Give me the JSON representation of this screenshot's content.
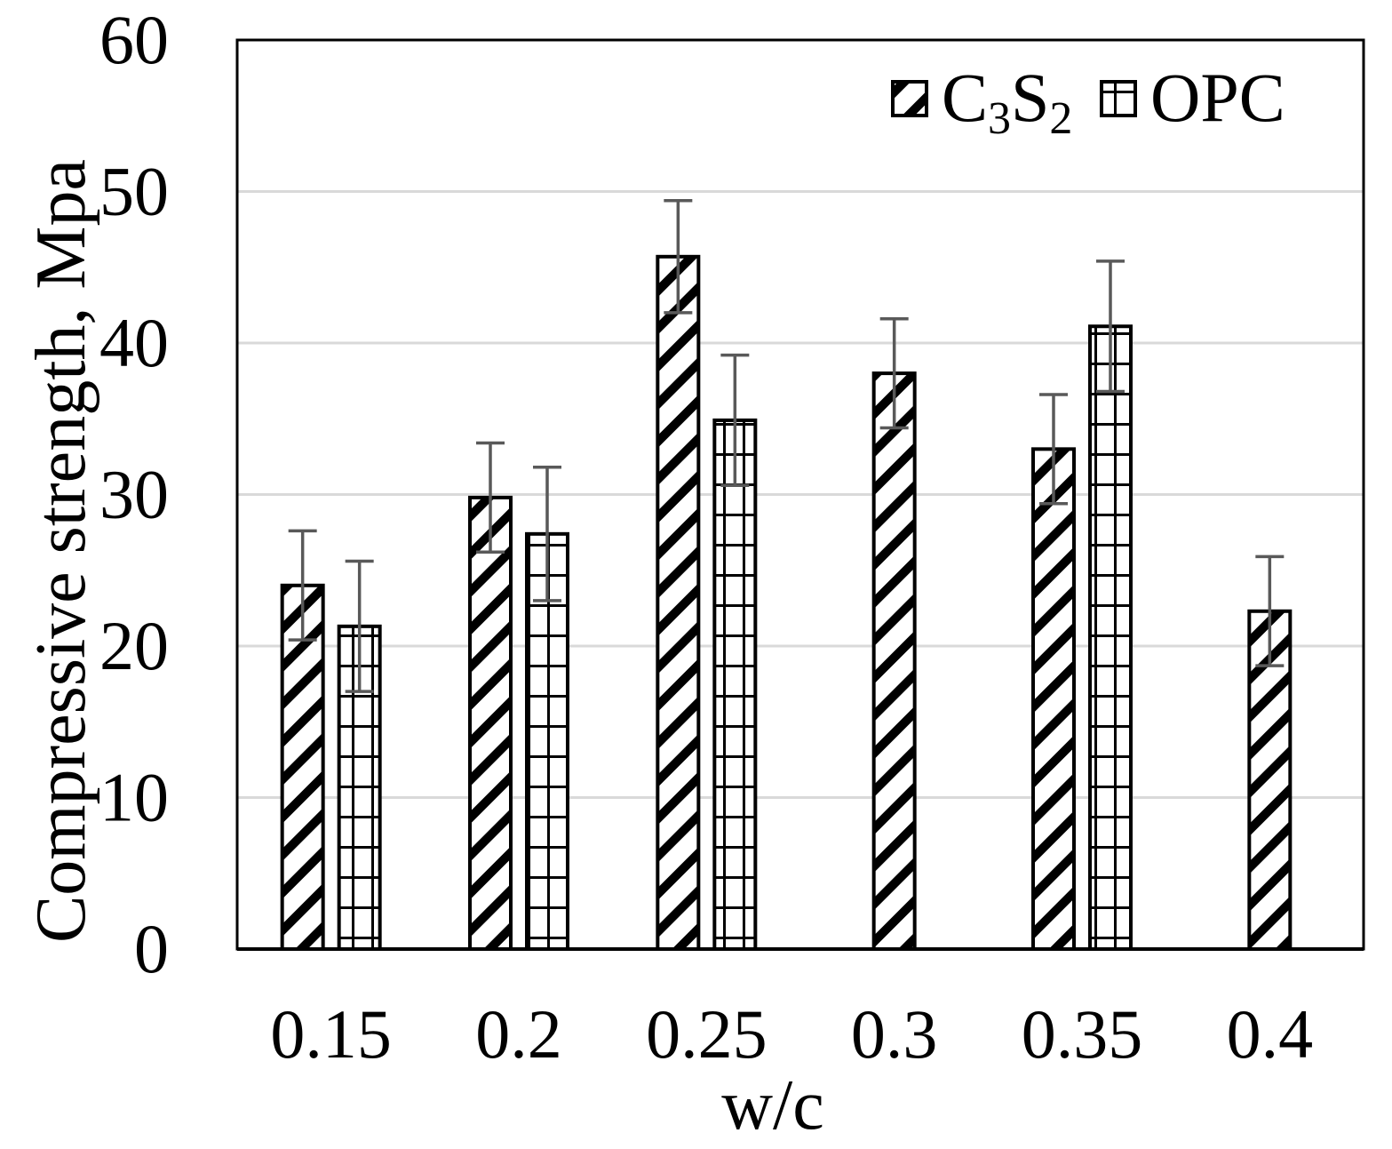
{
  "chart_data": {
    "type": "bar",
    "title": "",
    "xlabel": "w/c",
    "ylabel": "Compressive strength, Mpa",
    "categories": [
      "0.15",
      "0.2",
      "0.25",
      "0.3",
      "0.35",
      "0.4"
    ],
    "ylim": [
      0,
      60
    ],
    "yticks": [
      "0",
      "10",
      "20",
      "30",
      "40",
      "50",
      "60"
    ],
    "grid": true,
    "legend_position": "top-right",
    "series": [
      {
        "name": "C3S2",
        "label_base": "C",
        "label_sub1": "3",
        "label_mid": "S",
        "label_sub2": "2",
        "pattern": "diagonal",
        "values": [
          24,
          29.8,
          45.7,
          38,
          33,
          22.3
        ],
        "errors": [
          3.6,
          3.6,
          3.7,
          3.6,
          3.6,
          3.6
        ]
      },
      {
        "name": "OPC",
        "label": "OPC",
        "pattern": "grid",
        "values": [
          21.3,
          27.4,
          34.9,
          null,
          41.1,
          null
        ],
        "errors": [
          4.3,
          4.4,
          4.3,
          null,
          4.3,
          null
        ]
      }
    ]
  }
}
